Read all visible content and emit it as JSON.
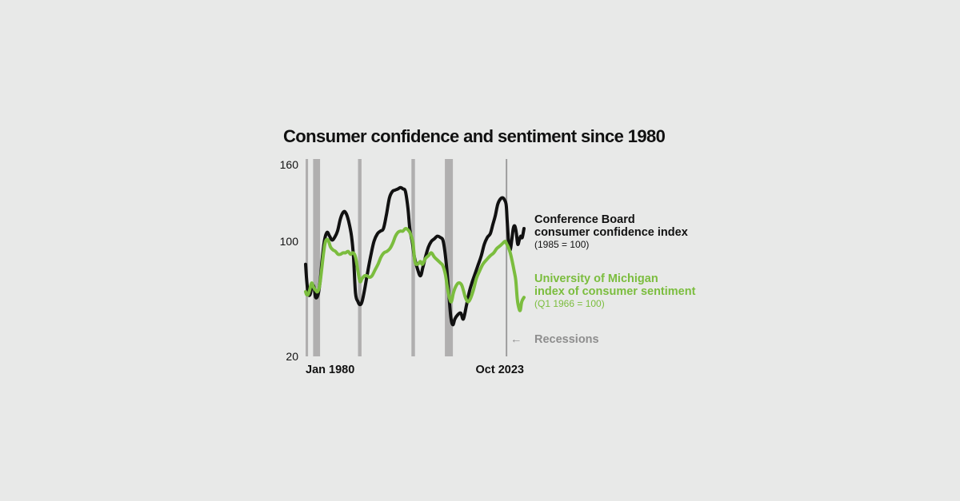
{
  "chart_data": {
    "type": "line",
    "title": "Consumer confidence and sentiment since 1980",
    "y_ticks": [
      "160",
      "100",
      "20"
    ],
    "ylim": [
      20,
      160
    ],
    "x_labels": {
      "start": "Jan 1980",
      "end": "Oct 2023"
    },
    "xlim": [
      1980.0,
      2023.75
    ],
    "series": [
      {
        "name": "Conference Board consumer confidence index",
        "note": "(1985 = 100)",
        "color": "#111111",
        "x": [
          1980.0,
          1980.2,
          1980.5,
          1980.9,
          1981.3,
          1981.7,
          1982.0,
          1982.5,
          1982.9,
          1983.3,
          1983.8,
          1984.3,
          1984.8,
          1985.3,
          1985.8,
          1986.4,
          1987.0,
          1987.6,
          1988.1,
          1988.6,
          1989.2,
          1989.6,
          1990.0,
          1990.5,
          1990.9,
          1991.3,
          1991.8,
          1992.4,
          1993.0,
          1993.7,
          1994.4,
          1995.0,
          1995.6,
          1996.2,
          1996.8,
          1997.4,
          1997.9,
          1998.5,
          1999.0,
          1999.5,
          2000.0,
          2000.5,
          2000.9,
          2001.4,
          2001.8,
          2002.4,
          2003.0,
          2003.5,
          2004.0,
          2004.6,
          2005.2,
          2005.8,
          2006.4,
          2007.0,
          2007.5,
          2007.9,
          2008.3,
          2008.7,
          2009.1,
          2009.5,
          2009.9,
          2010.5,
          2011.1,
          2011.6,
          2012.2,
          2012.8,
          2013.4,
          2014.0,
          2014.6,
          2015.2,
          2015.8,
          2016.4,
          2017.0,
          2017.5,
          2018.0,
          2018.5,
          2019.0,
          2019.5,
          2019.9,
          2020.2,
          2020.4,
          2020.7,
          2021.0,
          2021.3,
          2021.6,
          2021.9,
          2022.2,
          2022.5,
          2022.8,
          2023.1,
          2023.4,
          2023.75
        ],
        "values": [
          84,
          74,
          64,
          63,
          69,
          68,
          61,
          63,
          72,
          87,
          101,
          107,
          104,
          101,
          103,
          108,
          118,
          123,
          122,
          116,
          104,
          89,
          64,
          58,
          56,
          58,
          66,
          78,
          89,
          100,
          106,
          108,
          110,
          121,
          134,
          139,
          140,
          141,
          142,
          141,
          139,
          126,
          109,
          99,
          89,
          81,
          76,
          82,
          89,
          96,
          100,
          102,
          104,
          103,
          101,
          93,
          80,
          63,
          47,
          42,
          46,
          49,
          50,
          46,
          55,
          65,
          72,
          78,
          84,
          90,
          98,
          103,
          106,
          113,
          120,
          129,
          133,
          134,
          132,
          128,
          115,
          98,
          94,
          101,
          110,
          112,
          107,
          98,
          101,
          104,
          103,
          110
        ]
      },
      {
        "name": "University of Michigan index of consumer sentiment",
        "note": "(Q1 1966 = 100)",
        "color": "#7bbd3e",
        "x": [
          1980.0,
          1980.2,
          1980.5,
          1980.8,
          1981.2,
          1981.6,
          1982.0,
          1982.4,
          1982.8,
          1983.2,
          1983.6,
          1984.0,
          1984.5,
          1985.0,
          1985.5,
          1986.0,
          1986.5,
          1987.0,
          1987.5,
          1988.0,
          1988.5,
          1989.0,
          1989.5,
          1990.0,
          1990.5,
          1990.9,
          1991.3,
          1991.8,
          1992.3,
          1992.8,
          1993.3,
          1993.9,
          1994.5,
          1995.1,
          1995.7,
          1996.3,
          1996.9,
          1997.5,
          1998.0,
          1998.5,
          1999.0,
          1999.5,
          2000.0,
          2000.5,
          2001.0,
          2001.5,
          2001.9,
          2002.4,
          2003.0,
          2003.4,
          2004.0,
          2004.6,
          2005.2,
          2005.8,
          2006.4,
          2007.0,
          2007.5,
          2008.0,
          2008.4,
          2008.8,
          2009.2,
          2009.6,
          2010.0,
          2010.6,
          2011.2,
          2011.6,
          2012.0,
          2012.5,
          2013.0,
          2013.6,
          2014.2,
          2014.8,
          2015.5,
          2016.2,
          2017.0,
          2017.7,
          2018.3,
          2019.0,
          2019.6,
          2020.0,
          2020.3,
          2020.6,
          2021.0,
          2021.4,
          2021.8,
          2022.1,
          2022.4,
          2022.7,
          2023.0,
          2023.3,
          2023.75
        ],
        "values": [
          65,
          63,
          63,
          66,
          71,
          68,
          66,
          65,
          69,
          80,
          92,
          100,
          101,
          96,
          94,
          93,
          91,
          91,
          92,
          92,
          93,
          91,
          92,
          89,
          79,
          72,
          74,
          76,
          76,
          75,
          76,
          80,
          84,
          89,
          92,
          93,
          95,
          99,
          104,
          107,
          108,
          108,
          110,
          109,
          106,
          99,
          86,
          84,
          86,
          84,
          88,
          90,
          92,
          89,
          87,
          85,
          83,
          77,
          68,
          61,
          58,
          64,
          68,
          71,
          70,
          66,
          61,
          58,
          60,
          66,
          74,
          79,
          84,
          87,
          90,
          92,
          95,
          97,
          99,
          100,
          98,
          96,
          92,
          86,
          79,
          73,
          60,
          54,
          52,
          58,
          61
        ]
      }
    ],
    "recessions": [
      {
        "start": 1980.0,
        "end": 1980.5
      },
      {
        "start": 1981.5,
        "end": 1982.9
      },
      {
        "start": 1990.5,
        "end": 1991.2
      },
      {
        "start": 2001.2,
        "end": 2001.9
      },
      {
        "start": 2007.9,
        "end": 2009.5
      },
      {
        "start": 2020.1,
        "end": 2020.4
      }
    ],
    "recessions_label": "Recessions",
    "arrow_glyph": "←"
  }
}
